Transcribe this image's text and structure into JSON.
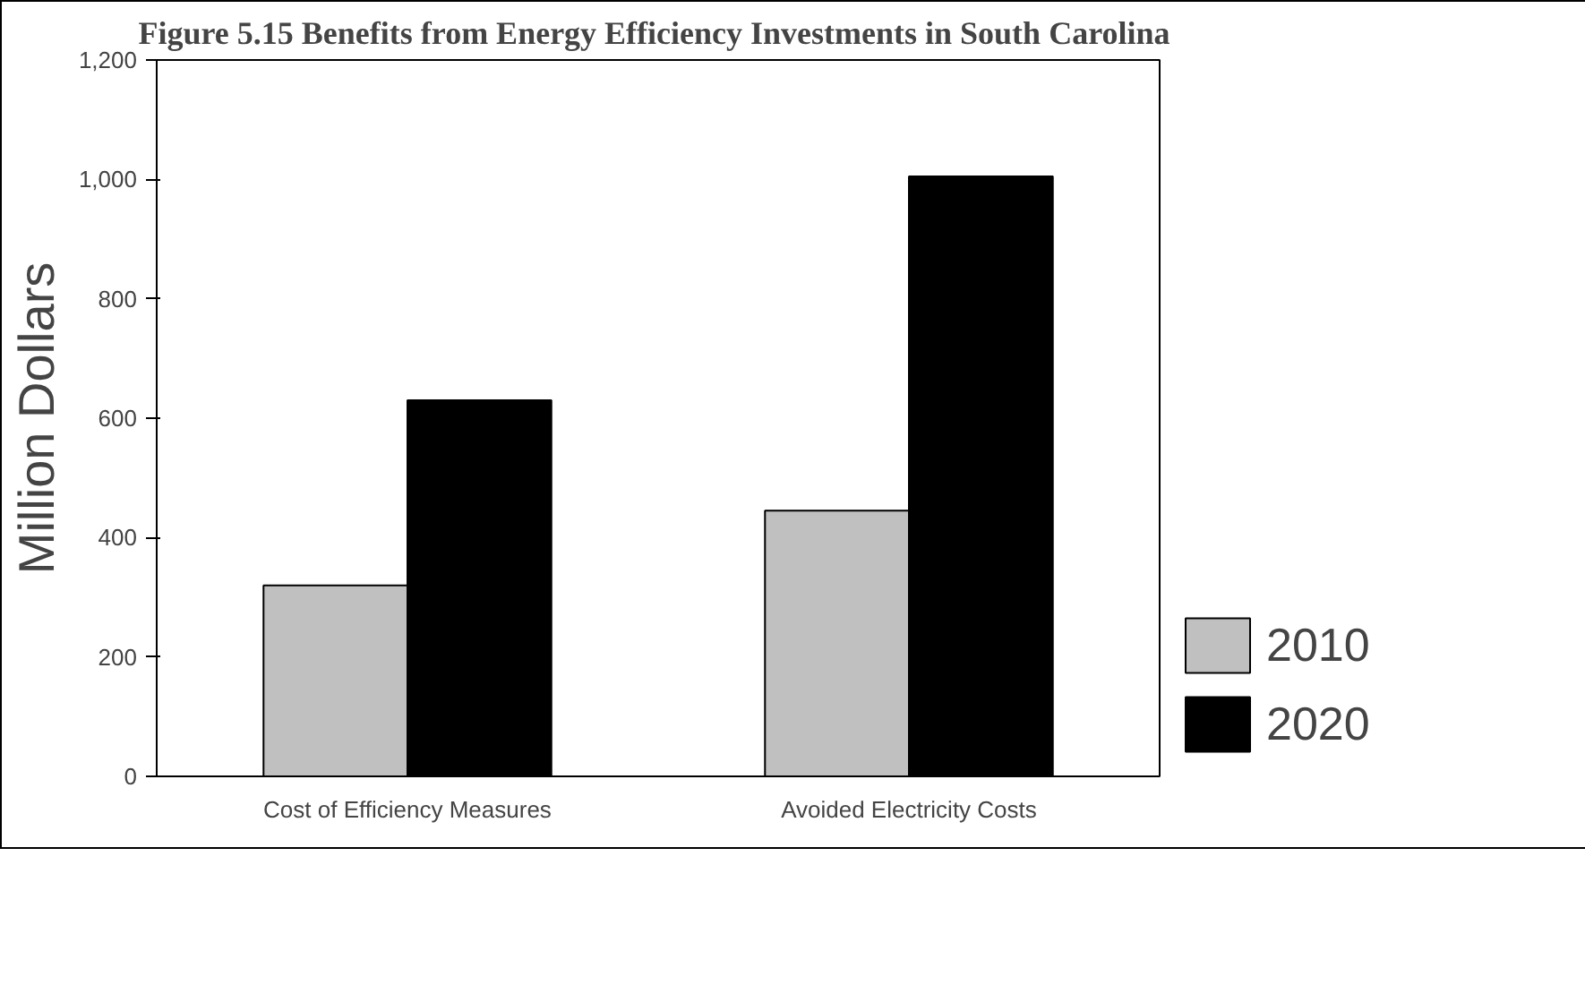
{
  "chart_data": {
    "type": "bar",
    "title": "Figure 5.15  Benefits from Energy Efficiency Investments in South Carolina",
    "ylabel": "Million Dollars",
    "categories": [
      "Cost of Efficiency Measures",
      "Avoided Electricity Costs"
    ],
    "series": [
      {
        "name": "2010",
        "color": "#c0c0c0",
        "values": [
          320,
          445
        ]
      },
      {
        "name": "2020",
        "color": "#000000",
        "values": [
          630,
          1005
        ]
      }
    ],
    "ylim": [
      0,
      1200
    ],
    "yticks": [
      0,
      {
        "value": 200,
        "label": "200"
      },
      {
        "value": 400,
        "label": "400"
      },
      {
        "value": 600,
        "label": "600"
      },
      {
        "value": 800,
        "label": "800"
      },
      {
        "value": 1000,
        "label": "1,000"
      },
      {
        "value": 1200,
        "label": "1,200"
      }
    ],
    "grid": false,
    "legend": "bottom right"
  }
}
